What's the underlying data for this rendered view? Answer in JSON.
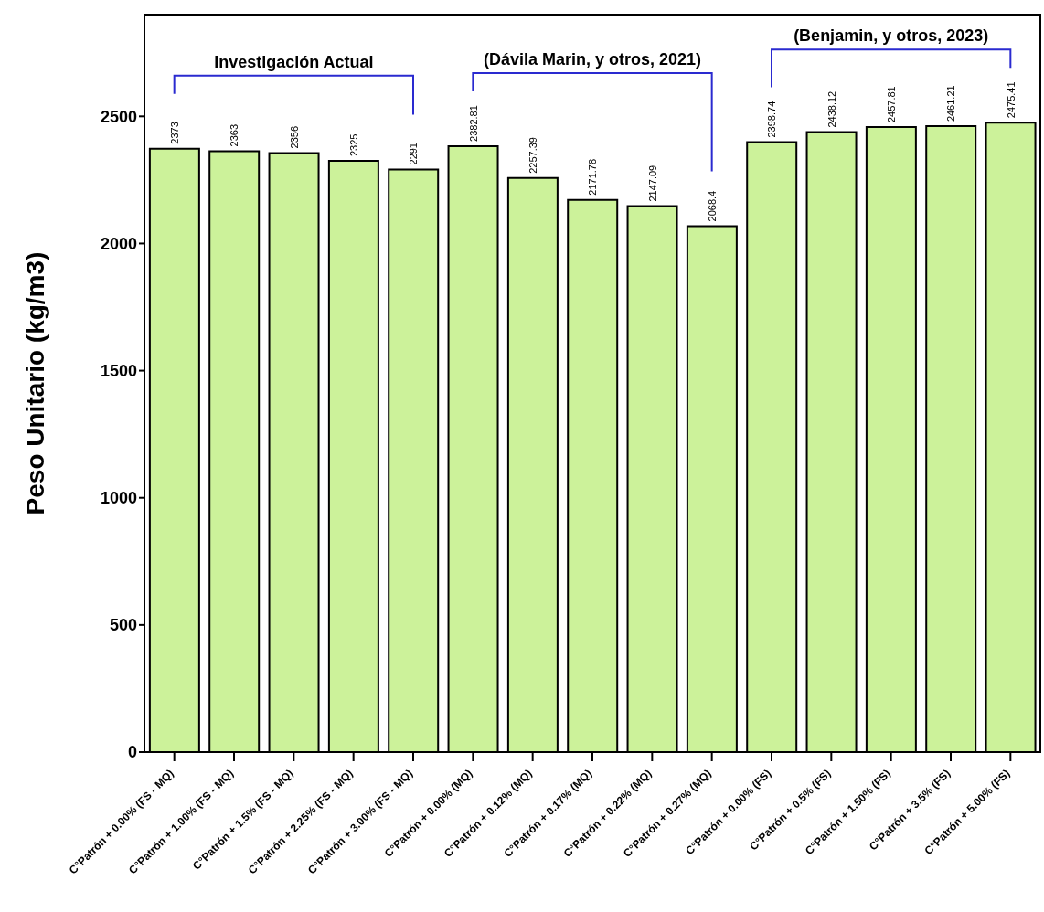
{
  "chart_data": {
    "type": "bar",
    "ylabel": "Peso Unitario (kg/m3)",
    "categories": [
      "C°Patrón + 0.00% (FS - MQ)",
      "C°Patrón + 1.00% (FS - MQ)",
      "C°Patrón + 1.5% (FS - MQ)",
      "C°Patrón + 2.25% (FS - MQ)",
      "C°Patrón + 3.00% (FS - MQ)",
      "C°Patrón + 0.00% (MQ)",
      "C°Patrón + 0.12% (MQ)",
      "C°Patrón + 0.17% (MQ)",
      "C°Patrón + 0.22% (MQ)",
      "C°Patrón + 0.27% (MQ)",
      "C°Patrón + 0.00% (FS)",
      "C°Patrón + 0.5% (FS)",
      "C°Patrón + 1.50% (FS)",
      "C°Patrón + 3.5% (FS)",
      "C°Patrón + 5.00% (FS)"
    ],
    "values": [
      2373,
      2363,
      2356,
      2325,
      2291,
      2382.81,
      2257.39,
      2171.78,
      2147.09,
      2068.4,
      2398.74,
      2438.12,
      2457.81,
      2461.21,
      2475.41
    ],
    "color": "#ccf29a",
    "ylim": [
      0,
      2900
    ],
    "yticks": [
      0,
      500,
      1000,
      1500,
      2000,
      2500
    ],
    "data_labels": true,
    "grid": false,
    "legend": false,
    "annotations": [
      "Investigación Actual",
      "(Dávila Marin, y otros, 2021)",
      "(Benjamin, y otros, 2023)"
    ]
  }
}
